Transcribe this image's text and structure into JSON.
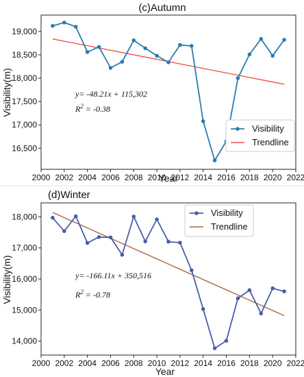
{
  "chart_data": [
    {
      "type": "line",
      "title": "(c)Autumn",
      "xlabel": "Year",
      "ylabel": "Visibility(m)",
      "xlim": [
        2000,
        2022
      ],
      "ylim": [
        16050,
        19350
      ],
      "xticks": [
        2000,
        2002,
        2004,
        2006,
        2008,
        2010,
        2012,
        2014,
        2016,
        2018,
        2020,
        2022
      ],
      "yticks": [
        16500,
        17000,
        17500,
        18000,
        18500,
        19000
      ],
      "ytick_labels": [
        "16,500",
        "17,000",
        "17,500",
        "18,000",
        "18,500",
        "19,000"
      ],
      "series": [
        {
          "name": "Visibility",
          "color": "#2b7bb0",
          "marker": "circle",
          "x": [
            2001,
            2002,
            2003,
            2004,
            2005,
            2006,
            2007,
            2008,
            2009,
            2010,
            2011,
            2012,
            2013,
            2014,
            2015,
            2016,
            2017,
            2018,
            2019,
            2020,
            2021
          ],
          "values": [
            19120,
            19190,
            19100,
            18560,
            18670,
            18220,
            18350,
            18810,
            18640,
            18480,
            18340,
            18710,
            18690,
            17080,
            16240,
            16650,
            18000,
            18510,
            18840,
            18480,
            18820
          ]
        },
        {
          "name": "Trendline",
          "color": "#f25050",
          "marker": "none",
          "x": [
            2001,
            2021
          ],
          "values": [
            18840,
            17870
          ]
        }
      ],
      "annotations": {
        "equation": "y= -48.21x + 115,302",
        "r2_prefix": "R",
        "r2_sup": "2",
        "r2_value": " = -0.38"
      },
      "legend": "lower-right",
      "grid": false
    },
    {
      "type": "line",
      "title": "(d)Winter",
      "xlabel": "Year",
      "ylabel": "Visibility(m)",
      "xlim": [
        2000,
        2022
      ],
      "ylim": [
        13550,
        18450
      ],
      "xticks": [
        2000,
        2002,
        2004,
        2006,
        2008,
        2010,
        2012,
        2014,
        2016,
        2018,
        2020,
        2022
      ],
      "yticks": [
        14000,
        15000,
        16000,
        17000,
        18000
      ],
      "ytick_labels": [
        "14,000",
        "15,000",
        "16,000",
        "17,000",
        "18,000"
      ],
      "series": [
        {
          "name": "Visibility",
          "color": "#4a5caa",
          "marker": "circle",
          "x": [
            2001,
            2002,
            2003,
            2004,
            2005,
            2006,
            2007,
            2008,
            2009,
            2010,
            2011,
            2012,
            2013,
            2014,
            2015,
            2016,
            2017,
            2018,
            2019,
            2020,
            2021
          ],
          "values": [
            17970,
            17540,
            18020,
            17160,
            17350,
            17340,
            16780,
            18010,
            17210,
            17920,
            17200,
            17170,
            16280,
            15030,
            13770,
            14010,
            15380,
            15640,
            14890,
            15700,
            15600
          ]
        },
        {
          "name": "Trendline",
          "color": "#a86a3e",
          "marker": "none",
          "x": [
            2001,
            2021
          ],
          "values": [
            18140,
            14820
          ]
        }
      ],
      "annotations": {
        "equation": "y= -166.11x + 350,516",
        "r2_prefix": "R",
        "r2_sup": "2",
        "r2_value": " = -0.78"
      },
      "legend": "top-right",
      "grid": false
    }
  ]
}
